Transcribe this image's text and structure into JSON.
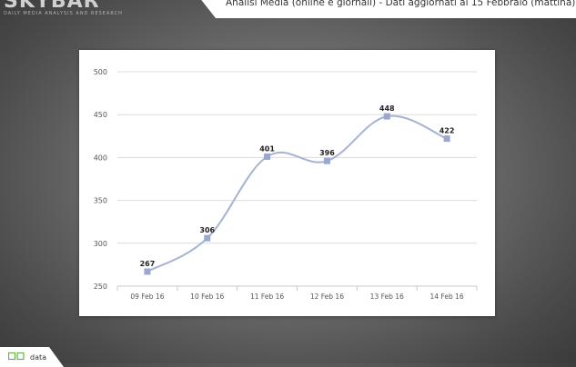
{
  "header": {
    "brand_logo_text": "SKYBAR",
    "brand_tagline": "DAILY MEDIA ANALYSIS AND RESEARCH",
    "title": "Analisi Media (online e giornali) - Dati aggiornati al 15 Febbraio (mattina)"
  },
  "footer": {
    "label": "data",
    "icon": "data-brand-icon"
  },
  "colors": {
    "line": "#a5b4d4",
    "marker": "#9aa8cf",
    "grid": "#dcdcdc",
    "axis_text": "#555555",
    "label_text": "#222222"
  },
  "chart_data": {
    "type": "line",
    "categories": [
      "09 Feb 16",
      "10 Feb 16",
      "11 Feb 16",
      "12 Feb 16",
      "13 Feb 16",
      "14 Feb 16"
    ],
    "series": [
      {
        "values": [
          267,
          306,
          401,
          396,
          448,
          422
        ]
      }
    ],
    "data_labels": [
      "267",
      "306",
      "401",
      "396",
      "448",
      "422"
    ],
    "yticks": [
      "250",
      "300",
      "350",
      "400",
      "450",
      "500"
    ],
    "ylim": [
      250,
      500
    ],
    "grid": true,
    "smooth": true,
    "title": "",
    "xlabel": "",
    "ylabel": ""
  }
}
